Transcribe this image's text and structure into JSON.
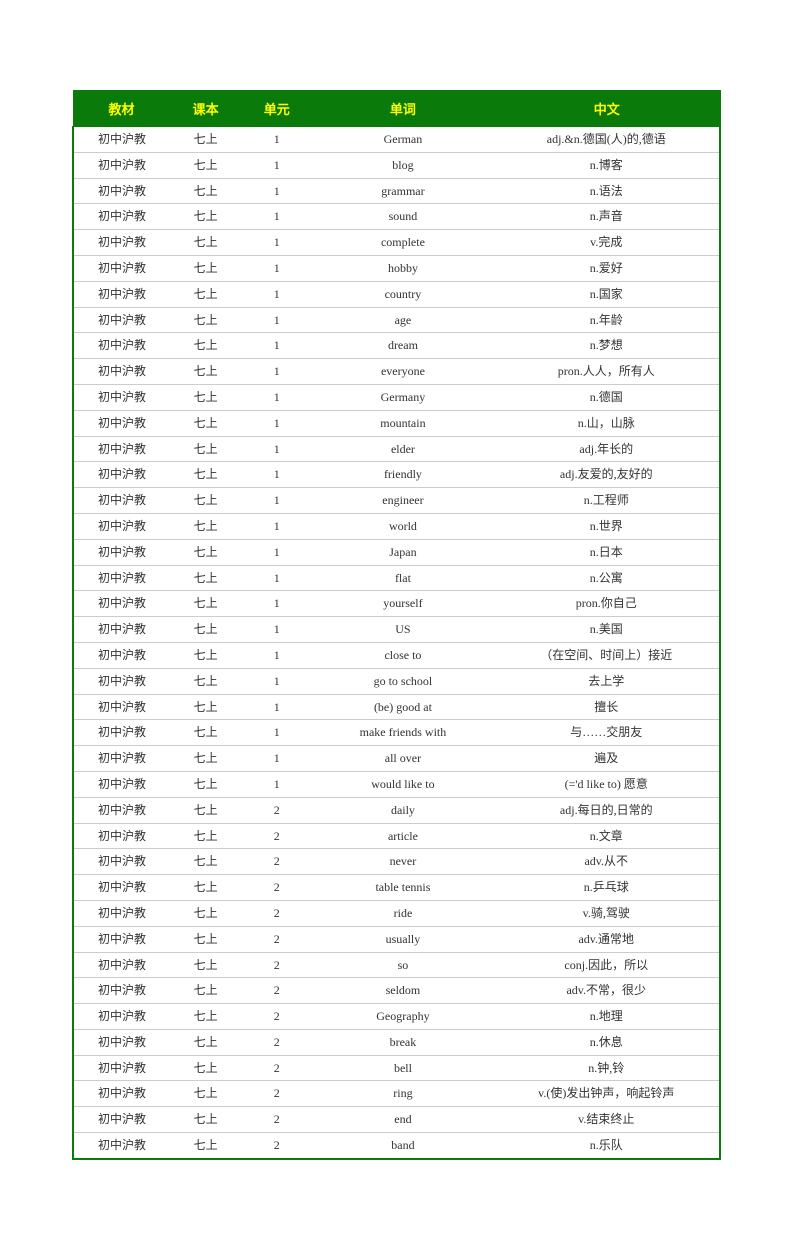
{
  "table": {
    "header_bg": "#0a7a0a",
    "header_color": "#ffff00",
    "border_color": "#0a7a0a",
    "row_border": "#cccccc",
    "columns": [
      "教材",
      "课本",
      "单元",
      "单词",
      "中文"
    ],
    "rows": [
      [
        "初中沪教",
        "七上",
        "1",
        "German",
        "adj.&n.德国(人)的,德语"
      ],
      [
        "初中沪教",
        "七上",
        "1",
        "blog",
        "n.博客"
      ],
      [
        "初中沪教",
        "七上",
        "1",
        "grammar",
        "n.语法"
      ],
      [
        "初中沪教",
        "七上",
        "1",
        "sound",
        "n.声音"
      ],
      [
        "初中沪教",
        "七上",
        "1",
        "complete",
        "v.完成"
      ],
      [
        "初中沪教",
        "七上",
        "1",
        "hobby",
        "n.爱好"
      ],
      [
        "初中沪教",
        "七上",
        "1",
        "country",
        "n.国家"
      ],
      [
        "初中沪教",
        "七上",
        "1",
        "age",
        "n.年龄"
      ],
      [
        "初中沪教",
        "七上",
        "1",
        "dream",
        "n.梦想"
      ],
      [
        "初中沪教",
        "七上",
        "1",
        "everyone",
        "pron.人人，所有人"
      ],
      [
        "初中沪教",
        "七上",
        "1",
        "Germany",
        "n.德国"
      ],
      [
        "初中沪教",
        "七上",
        "1",
        "mountain",
        "n.山，山脉"
      ],
      [
        "初中沪教",
        "七上",
        "1",
        "elder",
        "adj.年长的"
      ],
      [
        "初中沪教",
        "七上",
        "1",
        "friendly",
        "adj.友爱的,友好的"
      ],
      [
        "初中沪教",
        "七上",
        "1",
        "engineer",
        "n.工程师"
      ],
      [
        "初中沪教",
        "七上",
        "1",
        "world",
        "n.世界"
      ],
      [
        "初中沪教",
        "七上",
        "1",
        "Japan",
        "n.日本"
      ],
      [
        "初中沪教",
        "七上",
        "1",
        "flat",
        "n.公寓"
      ],
      [
        "初中沪教",
        "七上",
        "1",
        "yourself",
        "pron.你自己"
      ],
      [
        "初中沪教",
        "七上",
        "1",
        "US",
        "n.美国"
      ],
      [
        "初中沪教",
        "七上",
        "1",
        "close to",
        "（在空间、时间上）接近"
      ],
      [
        "初中沪教",
        "七上",
        "1",
        "go to school",
        "去上学"
      ],
      [
        "初中沪教",
        "七上",
        "1",
        "(be) good at",
        "擅长"
      ],
      [
        "初中沪教",
        "七上",
        "1",
        "make friends with",
        "与……交朋友"
      ],
      [
        "初中沪教",
        "七上",
        "1",
        "all over",
        "遍及"
      ],
      [
        "初中沪教",
        "七上",
        "1",
        "would like to",
        "(='d like to) 愿意"
      ],
      [
        "初中沪教",
        "七上",
        "2",
        "daily",
        "adj.每日的,日常的"
      ],
      [
        "初中沪教",
        "七上",
        "2",
        "article",
        "n.文章"
      ],
      [
        "初中沪教",
        "七上",
        "2",
        "never",
        "adv.从不"
      ],
      [
        "初中沪教",
        "七上",
        "2",
        "table tennis",
        "n.乒乓球"
      ],
      [
        "初中沪教",
        "七上",
        "2",
        "ride",
        "v.骑,驾驶"
      ],
      [
        "初中沪教",
        "七上",
        "2",
        "usually",
        "adv.通常地"
      ],
      [
        "初中沪教",
        "七上",
        "2",
        "so",
        "conj.因此，所以"
      ],
      [
        "初中沪教",
        "七上",
        "2",
        "seldom",
        "adv.不常，很少"
      ],
      [
        "初中沪教",
        "七上",
        "2",
        "Geography",
        "n.地理"
      ],
      [
        "初中沪教",
        "七上",
        "2",
        "break",
        "n.休息"
      ],
      [
        "初中沪教",
        "七上",
        "2",
        "bell",
        "n.钟,铃"
      ],
      [
        "初中沪教",
        "七上",
        "2",
        "ring",
        "v.(使)发出钟声，响起铃声"
      ],
      [
        "初中沪教",
        "七上",
        "2",
        "end",
        "v.结束终止"
      ],
      [
        "初中沪教",
        "七上",
        "2",
        "band",
        "n.乐队"
      ]
    ]
  }
}
